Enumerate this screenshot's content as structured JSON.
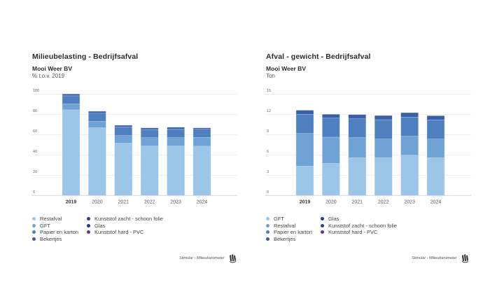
{
  "charts": [
    {
      "title": "Milieubelasting - Bedrijfsafval",
      "subtitle": "Mooi Weer BV",
      "unit": "% t.o.v. 2019",
      "footer": "Stimular - Milieubarometer",
      "legend_left": [
        {
          "label": "Restafval",
          "color": "#9cc6e8"
        },
        {
          "label": "GFT",
          "color": "#6fa3d6"
        },
        {
          "label": "Papier en karton",
          "color": "#4f7fbf"
        },
        {
          "label": "Bekertjes",
          "color": "#3a5eaa"
        }
      ],
      "legend_right": [
        {
          "label": "Kunststof zacht - schoon folie",
          "color": "#2c3f8f"
        },
        {
          "label": "Glas",
          "color": "#28388a"
        },
        {
          "label": "Kunststof hard - PVC",
          "color": "#5a3a94"
        }
      ]
    },
    {
      "title": "Afval - gewicht - Bedrijfsafval",
      "subtitle": "Mooi Weer BV",
      "unit": "Ton",
      "footer": "Stimular - Milieubarometer",
      "legend_left": [
        {
          "label": "GFT",
          "color": "#9cc6e8"
        },
        {
          "label": "Restafval",
          "color": "#6fa3d6"
        },
        {
          "label": "Papier en karton",
          "color": "#4f7fbf"
        },
        {
          "label": "Bekertjes",
          "color": "#3a5eaa"
        }
      ],
      "legend_right": [
        {
          "label": "Glas",
          "color": "#28388a"
        },
        {
          "label": "Kunststof zacht - schoon folie",
          "color": "#2c3f8f"
        },
        {
          "label": "Kunststof hard - PVC",
          "color": "#5a3a94"
        }
      ]
    }
  ],
  "chart_data": [
    {
      "type": "bar",
      "stacked": true,
      "title": "Milieubelasting - Bedrijfsafval",
      "subtitle": "Mooi Weer BV",
      "ylabel": "% t.o.v. 2019",
      "xlabel": "",
      "categories": [
        "2019",
        "2020",
        "2021",
        "2022",
        "2023",
        "2024"
      ],
      "highlight_category": "2019",
      "ylim": [
        0,
        100
      ],
      "yticks": [
        0,
        20,
        40,
        60,
        80,
        100
      ],
      "grid": true,
      "legend_position": "bottom",
      "series": [
        {
          "name": "Restafval",
          "color": "#9cc6e8",
          "values": [
            84.4,
            66.8,
            51.6,
            48.8,
            48.8,
            48.6
          ]
        },
        {
          "name": "GFT",
          "color": "#6fa3d6",
          "values": [
            5.9,
            6.2,
            7.4,
            8.1,
            8.1,
            8.6
          ]
        },
        {
          "name": "Papier en karton",
          "color": "#4f7fbf",
          "values": [
            7.9,
            8.1,
            8.5,
            8.1,
            8.6,
            8.0
          ]
        },
        {
          "name": "Bekertjes",
          "color": "#3a5eaa",
          "values": [
            1.8,
            1.9,
            1.7,
            1.6,
            1.8,
            1.4
          ]
        },
        {
          "name": "Kunststof zacht - schoon folie",
          "color": "#2c3f8f",
          "values": [
            0,
            0,
            0,
            0,
            0,
            0
          ]
        },
        {
          "name": "Glas",
          "color": "#28388a",
          "values": [
            0,
            0,
            0,
            0,
            0,
            0
          ]
        },
        {
          "name": "Kunststof hard - PVC",
          "color": "#5a3a94",
          "values": [
            0,
            0,
            0,
            0,
            0,
            0
          ]
        }
      ]
    },
    {
      "type": "bar",
      "stacked": true,
      "title": "Afval - gewicht - Bedrijfsafval",
      "subtitle": "Mooi Weer BV",
      "ylabel": "Ton",
      "xlabel": "",
      "categories": [
        "2019",
        "2020",
        "2021",
        "2022",
        "2023",
        "2024"
      ],
      "highlight_category": "2019",
      "ylim": [
        0,
        15
      ],
      "yticks": [
        0,
        3,
        6,
        9,
        12,
        15
      ],
      "grid": true,
      "legend_position": "bottom",
      "series": [
        {
          "name": "GFT",
          "color": "#9cc6e8",
          "values": [
            4.34,
            4.76,
            5.59,
            5.59,
            5.96,
            5.59
          ]
        },
        {
          "name": "Restafval",
          "color": "#6fa3d6",
          "values": [
            4.83,
            3.86,
            2.96,
            2.75,
            2.8,
            2.75
          ]
        },
        {
          "name": "Papier en karton",
          "color": "#4f7fbf",
          "values": [
            2.83,
            2.82,
            2.79,
            2.86,
            2.83,
            2.83
          ]
        },
        {
          "name": "Bekertjes",
          "color": "#3a5eaa",
          "values": [
            0.6,
            0.56,
            0.62,
            0.62,
            0.65,
            0.62
          ]
        },
        {
          "name": "Glas",
          "color": "#28388a",
          "values": [
            0,
            0,
            0,
            0,
            0,
            0
          ]
        },
        {
          "name": "Kunststof zacht - schoon folie",
          "color": "#2c3f8f",
          "values": [
            0,
            0,
            0,
            0,
            0,
            0
          ]
        },
        {
          "name": "Kunststof hard - PVC",
          "color": "#5a3a94",
          "values": [
            0,
            0,
            0,
            0,
            0,
            0
          ]
        }
      ]
    }
  ]
}
